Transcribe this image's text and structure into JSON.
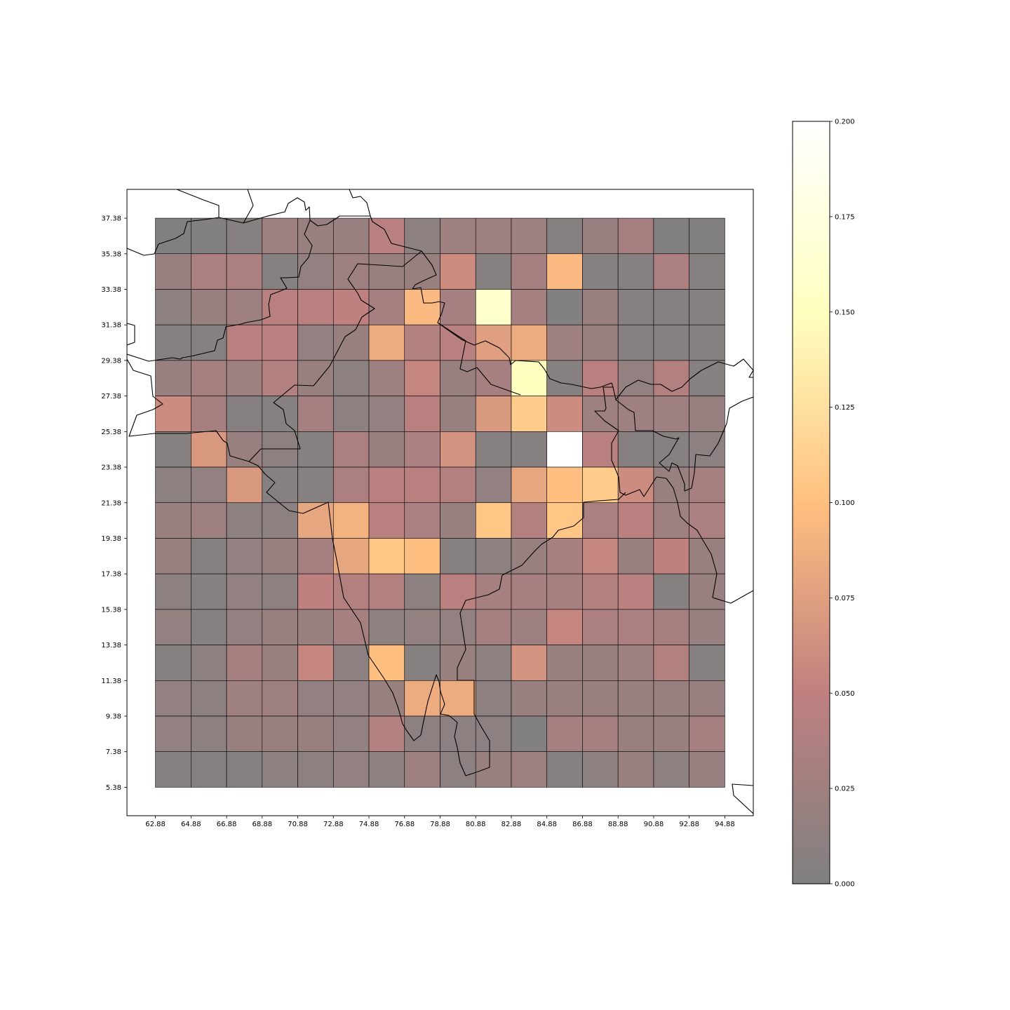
{
  "chart_data": {
    "type": "heatmap",
    "title": "",
    "xlabel": "",
    "ylabel": "",
    "x_ticks": [
      "62.88",
      "64.88",
      "66.88",
      "68.88",
      "70.88",
      "72.88",
      "74.88",
      "76.88",
      "78.88",
      "80.88",
      "82.88",
      "84.88",
      "86.88",
      "88.88",
      "90.88",
      "92.88",
      "94.88"
    ],
    "y_ticks": [
      "37.38",
      "35.38",
      "33.38",
      "31.38",
      "29.38",
      "27.38",
      "25.38",
      "23.38",
      "21.38",
      "19.38",
      "17.38",
      "15.38",
      "13.38",
      "11.38",
      "9.38",
      "7.38",
      "5.38"
    ],
    "x_range": [
      61.28,
      96.48
    ],
    "y_range": [
      3.78,
      39.0
    ],
    "grid_x_edges": [
      62.88,
      94.88
    ],
    "grid_y_edges": [
      5.38,
      37.38
    ],
    "cell_size_deg": 2,
    "colormap": "afmhot",
    "alpha": 0.5,
    "colorbar": {
      "min": 0.0,
      "max": 0.2,
      "ticks": [
        "0.200",
        "0.175",
        "0.150",
        "0.125",
        "0.100",
        "0.075",
        "0.050",
        "0.025",
        "0.000"
      ],
      "tick_values": [
        0.2,
        0.175,
        0.15,
        0.125,
        0.1,
        0.075,
        0.05,
        0.025,
        0.0
      ]
    },
    "rows_order": "top-to-bottom (latitude 37.38 down to 5.38)",
    "values": [
      [
        0.0,
        0.002,
        0.005,
        0.025,
        0.02,
        0.02,
        0.045,
        0.01,
        0.025,
        0.025,
        0.025,
        0.005,
        0.02,
        0.03,
        0.002,
        0.002
      ],
      [
        0.02,
        0.035,
        0.035,
        0.005,
        0.015,
        0.025,
        0.02,
        0.02,
        0.06,
        0.005,
        0.03,
        0.095,
        0.005,
        0.005,
        0.035,
        0.005
      ],
      [
        0.01,
        0.02,
        0.025,
        0.045,
        0.045,
        0.05,
        0.03,
        0.095,
        0.03,
        0.16,
        0.03,
        0.002,
        0.02,
        0.005,
        0.005,
        0.005
      ],
      [
        0.005,
        0.005,
        0.045,
        0.045,
        0.015,
        0.02,
        0.085,
        0.04,
        0.045,
        0.075,
        0.085,
        0.025,
        0.02,
        0.005,
        0.005,
        0.005
      ],
      [
        0.02,
        0.03,
        0.025,
        0.04,
        0.02,
        0.01,
        0.025,
        0.055,
        0.02,
        0.03,
        0.15,
        0.005,
        0.045,
        0.015,
        0.04,
        0.005
      ],
      [
        0.06,
        0.03,
        0.005,
        0.005,
        0.03,
        0.01,
        0.015,
        0.045,
        0.02,
        0.07,
        0.11,
        0.06,
        0.025,
        0.025,
        0.025,
        0.02
      ],
      [
        0.005,
        0.07,
        0.02,
        0.01,
        0.005,
        0.035,
        0.02,
        0.035,
        0.065,
        0.005,
        0.005,
        0.2,
        0.045,
        0.005,
        0.005,
        0.01
      ],
      [
        0.01,
        0.015,
        0.07,
        0.005,
        0.005,
        0.035,
        0.045,
        0.045,
        0.04,
        0.015,
        0.08,
        0.1,
        0.11,
        0.06,
        0.02,
        0.03
      ],
      [
        0.02,
        0.025,
        0.01,
        0.01,
        0.08,
        0.09,
        0.045,
        0.035,
        0.02,
        0.105,
        0.04,
        0.105,
        0.035,
        0.045,
        0.025,
        0.035
      ],
      [
        0.02,
        0.005,
        0.015,
        0.02,
        0.03,
        0.08,
        0.105,
        0.1,
        0.005,
        0.01,
        0.02,
        0.03,
        0.055,
        0.02,
        0.05,
        0.02
      ],
      [
        0.01,
        0.005,
        0.015,
        0.01,
        0.05,
        0.04,
        0.04,
        0.01,
        0.045,
        0.03,
        0.03,
        0.03,
        0.04,
        0.045,
        0.005,
        0.02
      ],
      [
        0.015,
        0.005,
        0.015,
        0.02,
        0.02,
        0.03,
        0.01,
        0.015,
        0.015,
        0.03,
        0.025,
        0.055,
        0.035,
        0.035,
        0.03,
        0.02
      ],
      [
        0.005,
        0.01,
        0.03,
        0.02,
        0.055,
        0.01,
        0.1,
        0.005,
        0.02,
        0.01,
        0.065,
        0.02,
        0.02,
        0.025,
        0.04,
        0.005
      ],
      [
        0.015,
        0.01,
        0.025,
        0.025,
        0.015,
        0.015,
        0.02,
        0.085,
        0.085,
        0.01,
        0.02,
        0.02,
        0.02,
        0.02,
        0.02,
        0.02
      ],
      [
        0.015,
        0.01,
        0.02,
        0.02,
        0.02,
        0.015,
        0.04,
        0.01,
        0.01,
        0.01,
        0.002,
        0.03,
        0.03,
        0.02,
        0.02,
        0.03
      ],
      [
        0.005,
        0.005,
        0.005,
        0.01,
        0.01,
        0.015,
        0.01,
        0.025,
        0.01,
        0.02,
        0.025,
        0.005,
        0.01,
        0.02,
        0.01,
        0.02
      ]
    ]
  }
}
